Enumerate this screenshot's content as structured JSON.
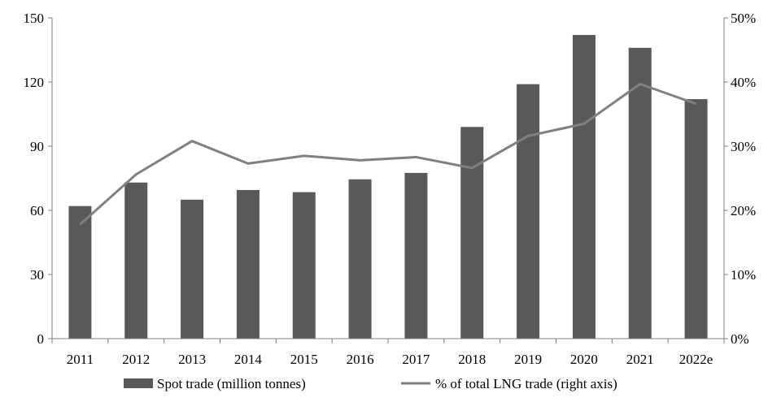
{
  "chart_data": {
    "type": "bar",
    "categories": [
      "2011",
      "2012",
      "2013",
      "2014",
      "2015",
      "2016",
      "2017",
      "2018",
      "2019",
      "2020",
      "2021",
      "2022e"
    ],
    "series": [
      {
        "name": "Spot trade (million tonnes)",
        "type": "bar",
        "axis": "left",
        "color": "#595959",
        "values": [
          62,
          73,
          65,
          69.5,
          68.5,
          74.5,
          77.5,
          99,
          119,
          142,
          136,
          112
        ]
      },
      {
        "name": "% of total LNG trade (right axis)",
        "type": "line",
        "axis": "right",
        "color": "#808080",
        "values": [
          17.8,
          25.6,
          30.8,
          27.3,
          28.5,
          27.8,
          28.3,
          26.6,
          31.6,
          33.5,
          39.7,
          36.6
        ]
      }
    ],
    "y_left": {
      "range": [
        0,
        150
      ],
      "ticks": [
        0,
        30,
        60,
        90,
        120,
        150
      ],
      "tick_labels": [
        "0",
        "30",
        "60",
        "90",
        "120",
        "150"
      ]
    },
    "y_right": {
      "range": [
        0,
        50
      ],
      "ticks": [
        0,
        10,
        20,
        30,
        40,
        50
      ],
      "tick_labels": [
        "0%",
        "10%",
        "20%",
        "30%",
        "40%",
        "50%"
      ]
    },
    "title": "",
    "xlabel": "",
    "ylabel": "",
    "grid": false,
    "legend_position": "bottom"
  }
}
